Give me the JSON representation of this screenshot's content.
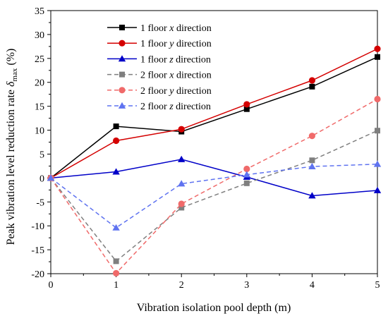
{
  "chart_data": {
    "type": "line",
    "xlabel": "Vibration isolation pool depth (m)",
    "ylabel": {
      "prefix": "Peak vibration level reduction rate ",
      "symbol": "δ",
      "subscript": "max",
      "suffix": " (%)"
    },
    "xlim": [
      0,
      5
    ],
    "ylim": [
      -20,
      35
    ],
    "x_ticks": [
      "0",
      "1",
      "2",
      "3",
      "4",
      "5"
    ],
    "y_ticks": [
      "-20",
      "-15",
      "-10",
      "-5",
      "0",
      "5",
      "10",
      "15",
      "20",
      "25",
      "30",
      "35"
    ],
    "legend_position": "top-left",
    "grid": false,
    "x": [
      0,
      1,
      2,
      3,
      4,
      5
    ],
    "series": [
      {
        "name": "1 floor x direction",
        "floor_text": "1 floor ",
        "axis_text": "x",
        "dir_text": " direction",
        "values": [
          0,
          10.8,
          9.7,
          14.4,
          19.1,
          25.3
        ],
        "color": "#000000",
        "marker": "square",
        "dashed": false
      },
      {
        "name": "1 floor y direction",
        "floor_text": "1 floor ",
        "axis_text": "y",
        "dir_text": " direction",
        "values": [
          0,
          7.8,
          10.2,
          15.4,
          20.4,
          27.0
        ],
        "color": "#d40000",
        "marker": "circle",
        "dashed": false
      },
      {
        "name": "1 floor z direction",
        "floor_text": "1 floor ",
        "axis_text": "z",
        "dir_text": " direction",
        "values": [
          0,
          1.3,
          3.9,
          0.2,
          -3.7,
          -2.6
        ],
        "color": "#0000c8",
        "marker": "triangle",
        "dashed": false
      },
      {
        "name": "2 floor x direction",
        "floor_text": "2 floor ",
        "axis_text": "x",
        "dir_text": " direction",
        "values": [
          0,
          -17.4,
          -6.2,
          -1.1,
          3.7,
          9.9
        ],
        "color": "#7f7f7f",
        "marker": "square",
        "dashed": true
      },
      {
        "name": "2 floor y direction",
        "floor_text": "2 floor ",
        "axis_text": "y",
        "dir_text": " direction",
        "values": [
          0,
          -19.9,
          -5.4,
          1.9,
          8.8,
          16.5
        ],
        "color": "#f06a6a",
        "marker": "circle",
        "dashed": true
      },
      {
        "name": "2 floor z direction",
        "floor_text": "2 floor ",
        "axis_text": "z",
        "dir_text": " direction",
        "values": [
          0,
          -10.4,
          -1.2,
          0.7,
          2.4,
          2.9
        ],
        "color": "#5f73f0",
        "marker": "triangle",
        "dashed": true
      }
    ]
  }
}
